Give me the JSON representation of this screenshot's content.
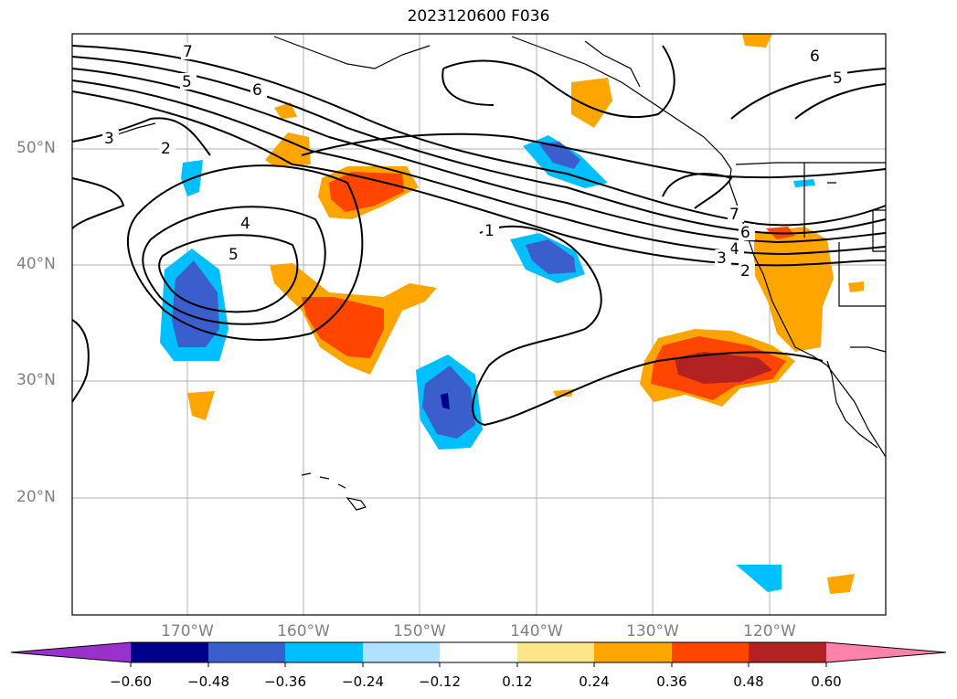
{
  "title": "2023120600 F036",
  "lat_labels": [
    "50°N",
    "40°N",
    "30°N",
    "20°N"
  ],
  "lon_labels": [
    "170°W",
    "160°W",
    "150°W",
    "140°W",
    "130°W",
    "120°W"
  ],
  "contour_labels": [
    "7",
    "5",
    "6",
    "3",
    "2",
    "4",
    "5",
    "1",
    "6",
    "5",
    "7",
    "6",
    "4",
    "3",
    "2"
  ],
  "colorbar": {
    "tick_labels": [
      "−0.60",
      "−0.48",
      "−0.36",
      "−0.24",
      "−0.12",
      "0.12",
      "0.24",
      "0.36",
      "0.48",
      "0.60"
    ],
    "colors": [
      "#9932cc",
      "#00008b",
      "#3a5fcd",
      "#00bfff",
      "#b0e2ff",
      "#ffffff",
      "#fde68a",
      "#ffa500",
      "#ff4500",
      "#b22222",
      "#ff82ab"
    ]
  }
}
